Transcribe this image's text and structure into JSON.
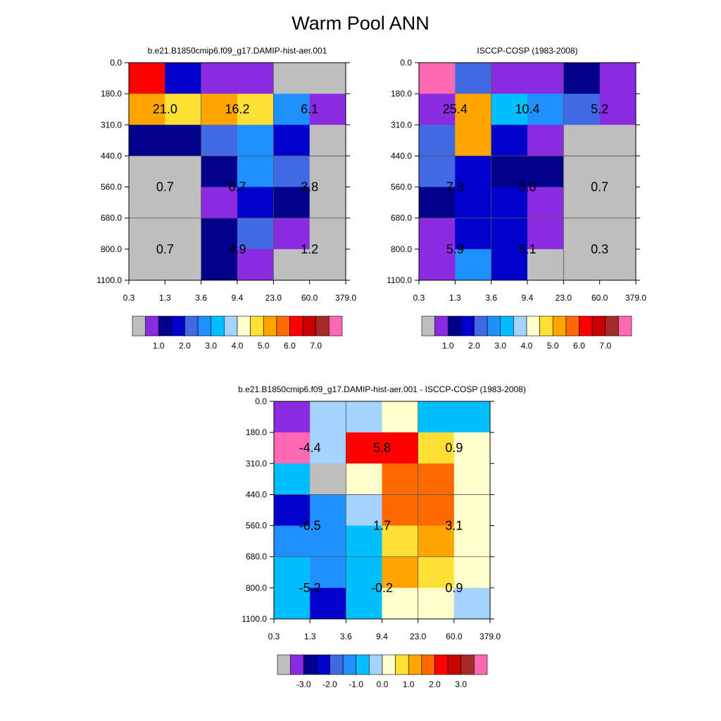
{
  "title": "Warm Pool ANN",
  "chart_data": [
    {
      "type": "heatmap",
      "title": "b.e21.B1850cmip6.f09_g17.DAMIP-hist-aer.001",
      "x_ticks": [
        "0.3",
        "1.3",
        "3.6",
        "9.4",
        "23.0",
        "60.0",
        "379.0"
      ],
      "y_ticks": [
        "0.0",
        "180.0",
        "310.0",
        "440.0",
        "560.0",
        "680.0",
        "800.0",
        "1100.0"
      ],
      "colorbar": {
        "colors": [
          "#bebebe",
          "#8a2be2",
          "#00008b",
          "#0000cd",
          "#4169e1",
          "#1e90ff",
          "#00bfff",
          "#a4d3ff",
          "#ffffcc",
          "#ffe135",
          "#ffa500",
          "#ff6a00",
          "#ff0000",
          "#c80000",
          "#a52a2a",
          "#ff69b4"
        ],
        "tick_labels": [
          "1.0",
          "2.0",
          "3.0",
          "4.0",
          "5.0",
          "6.0",
          "7.0"
        ]
      },
      "cell_colors": [
        [
          "#ff0000",
          "#0000cd",
          "#8a2be2",
          "#8a2be2",
          "#bebebe",
          "#bebebe"
        ],
        [
          "#ffa500",
          "#ffe135",
          "#ffa500",
          "#ffe135",
          "#1e90ff",
          "#8a2be2"
        ],
        [
          "#00008b",
          "#00008b",
          "#4169e1",
          "#1e90ff",
          "#0000cd",
          "#bebebe"
        ],
        [
          "#bebebe",
          "#bebebe",
          "#00008b",
          "#1e90ff",
          "#4169e1",
          "#bebebe"
        ],
        [
          "#bebebe",
          "#bebebe",
          "#8a2be2",
          "#0000cd",
          "#00008b",
          "#bebebe"
        ],
        [
          "#bebebe",
          "#bebebe",
          "#00008b",
          "#4169e1",
          "#8a2be2",
          "#bebebe"
        ],
        [
          "#bebebe",
          "#bebebe",
          "#00008b",
          "#8a2be2",
          "#bebebe",
          "#bebebe"
        ]
      ],
      "block_values": [
        {
          "row": 1,
          "col": 0,
          "value": "21.0"
        },
        {
          "row": 1,
          "col": 1,
          "value": "16.2"
        },
        {
          "row": 1,
          "col": 2,
          "value": "6.1"
        },
        {
          "row": 2,
          "col": 0,
          "value": "0.7"
        },
        {
          "row": 2,
          "col": 1,
          "value": "6.7"
        },
        {
          "row": 2,
          "col": 2,
          "value": "3.8"
        },
        {
          "row": 3,
          "col": 0,
          "value": "0.7"
        },
        {
          "row": 3,
          "col": 1,
          "value": "4.9"
        },
        {
          "row": 3,
          "col": 2,
          "value": "1.2"
        }
      ]
    },
    {
      "type": "heatmap",
      "title": "ISCCP-COSP (1983-2008)",
      "x_ticks": [
        "0.3",
        "1.3",
        "3.6",
        "9.4",
        "23.0",
        "60.0",
        "379.0"
      ],
      "y_ticks": [
        "0.0",
        "180.0",
        "310.0",
        "440.0",
        "560.0",
        "680.0",
        "800.0",
        "1100.0"
      ],
      "colorbar": {
        "colors": [
          "#bebebe",
          "#8a2be2",
          "#00008b",
          "#0000cd",
          "#4169e1",
          "#1e90ff",
          "#00bfff",
          "#a4d3ff",
          "#ffffcc",
          "#ffe135",
          "#ffa500",
          "#ff6a00",
          "#ff0000",
          "#c80000",
          "#a52a2a",
          "#ff69b4"
        ],
        "tick_labels": [
          "1.0",
          "2.0",
          "3.0",
          "4.0",
          "5.0",
          "6.0",
          "7.0"
        ]
      },
      "cell_colors": [
        [
          "#ff69b4",
          "#4169e1",
          "#8a2be2",
          "#8a2be2",
          "#00008b",
          "#8a2be2"
        ],
        [
          "#8a2be2",
          "#ffa500",
          "#00bfff",
          "#1e90ff",
          "#4169e1",
          "#8a2be2"
        ],
        [
          "#4169e1",
          "#ffa500",
          "#0000cd",
          "#8a2be2",
          "#bebebe",
          "#bebebe"
        ],
        [
          "#4169e1",
          "#0000cd",
          "#00008b",
          "#00008b",
          "#bebebe",
          "#bebebe"
        ],
        [
          "#00008b",
          "#0000cd",
          "#0000cd",
          "#8a2be2",
          "#bebebe",
          "#bebebe"
        ],
        [
          "#8a2be2",
          "#0000cd",
          "#0000cd",
          "#8a2be2",
          "#bebebe",
          "#bebebe"
        ],
        [
          "#8a2be2",
          "#1e90ff",
          "#0000cd",
          "#bebebe",
          "#bebebe",
          "#bebebe"
        ]
      ],
      "block_values": [
        {
          "row": 1,
          "col": 0,
          "value": "25.4"
        },
        {
          "row": 1,
          "col": 1,
          "value": "10.4"
        },
        {
          "row": 1,
          "col": 2,
          "value": "5.2"
        },
        {
          "row": 2,
          "col": 0,
          "value": "7.3"
        },
        {
          "row": 2,
          "col": 1,
          "value": "5.0"
        },
        {
          "row": 2,
          "col": 2,
          "value": "0.7"
        },
        {
          "row": 3,
          "col": 0,
          "value": "5.9"
        },
        {
          "row": 3,
          "col": 1,
          "value": "5.1"
        },
        {
          "row": 3,
          "col": 2,
          "value": "0.3"
        }
      ]
    },
    {
      "type": "heatmap",
      "title": "b.e21.B1850cmip6.f09_g17.DAMIP-hist-aer.001 - ISCCP-COSP (1983-2008)",
      "x_ticks": [
        "0.3",
        "1.3",
        "3.6",
        "9.4",
        "23.0",
        "60.0",
        "379.0"
      ],
      "y_ticks": [
        "0.0",
        "180.0",
        "310.0",
        "440.0",
        "560.0",
        "680.0",
        "800.0",
        "1100.0"
      ],
      "colorbar": {
        "colors": [
          "#bebebe",
          "#8a2be2",
          "#00008b",
          "#0000cd",
          "#4169e1",
          "#1e90ff",
          "#00bfff",
          "#a4d3ff",
          "#ffffcc",
          "#ffe135",
          "#ffa500",
          "#ff6a00",
          "#ff0000",
          "#c80000",
          "#a52a2a",
          "#ff69b4"
        ],
        "tick_labels": [
          "-3.0",
          "-2.0",
          "-1.0",
          "0.0",
          "1.0",
          "2.0",
          "3.0"
        ]
      },
      "cell_colors": [
        [
          "#8a2be2",
          "#a4d3ff",
          "#a4d3ff",
          "#ffffcc",
          "#00bfff",
          "#00bfff"
        ],
        [
          "#ff69b4",
          "#a4d3ff",
          "#ff0000",
          "#ff0000",
          "#ffe135",
          "#ffffcc"
        ],
        [
          "#00bfff",
          "#bebebe",
          "#ffffcc",
          "#ff6a00",
          "#ff6a00",
          "#ffffcc"
        ],
        [
          "#0000cd",
          "#1e90ff",
          "#a4d3ff",
          "#ff6a00",
          "#ff6a00",
          "#ffffcc"
        ],
        [
          "#1e90ff",
          "#1e90ff",
          "#00bfff",
          "#ffe135",
          "#ffa500",
          "#ffffcc"
        ],
        [
          "#00bfff",
          "#1e90ff",
          "#00bfff",
          "#ffa500",
          "#ffe135",
          "#ffffcc"
        ],
        [
          "#00bfff",
          "#0000cd",
          "#00bfff",
          "#ffffcc",
          "#ffffcc",
          "#a4d3ff"
        ]
      ],
      "block_values": [
        {
          "row": 1,
          "col": 0,
          "value": "-4.4"
        },
        {
          "row": 1,
          "col": 1,
          "value": "5.8"
        },
        {
          "row": 1,
          "col": 2,
          "value": "0.9"
        },
        {
          "row": 2,
          "col": 0,
          "value": "-6.5"
        },
        {
          "row": 2,
          "col": 1,
          "value": "1.7"
        },
        {
          "row": 2,
          "col": 2,
          "value": "3.1"
        },
        {
          "row": 3,
          "col": 0,
          "value": "-5.2"
        },
        {
          "row": 3,
          "col": 1,
          "value": "-0.2"
        },
        {
          "row": 3,
          "col": 2,
          "value": "0.9"
        }
      ]
    }
  ]
}
